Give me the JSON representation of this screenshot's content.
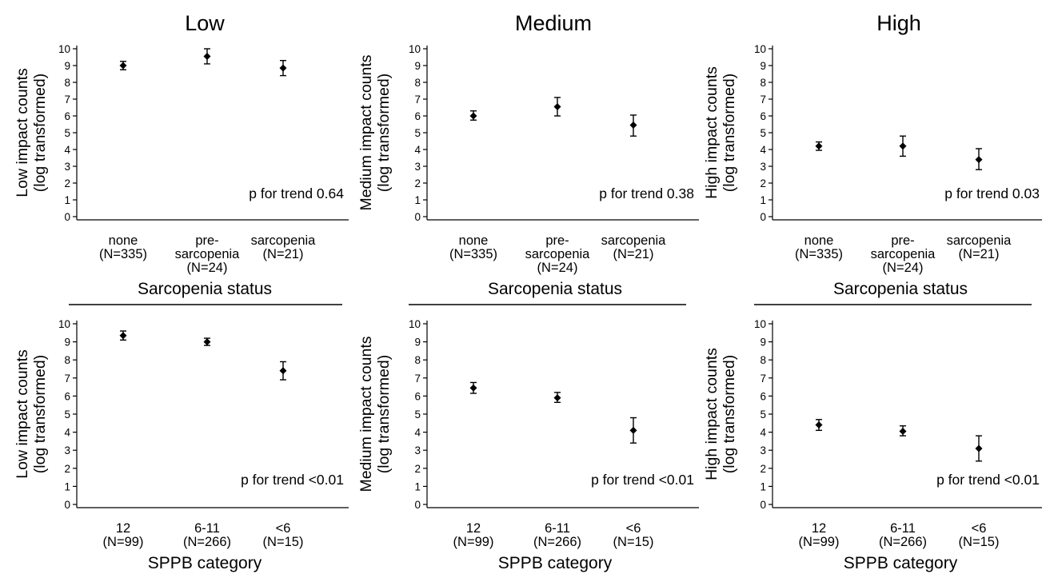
{
  "column_titles": [
    "Low",
    "Medium",
    "High"
  ],
  "chart_data": [
    {
      "type": "scatter",
      "errorbars": true,
      "ylabel": [
        "Low impact counts",
        "(log transformed)"
      ],
      "xlabel": "Sarcopenia status",
      "ylim": [
        0,
        10
      ],
      "yticks": [
        0,
        1,
        2,
        3,
        4,
        5,
        6,
        7,
        8,
        9,
        10
      ],
      "categories": [
        [
          "none",
          "(N=335)"
        ],
        [
          "pre-",
          "sarcopenia",
          "(N=24)"
        ],
        [
          "sarcopenia",
          "(N=21)"
        ]
      ],
      "values": [
        9.0,
        9.55,
        8.85
      ],
      "lower": [
        8.75,
        9.1,
        8.4
      ],
      "upper": [
        9.25,
        10.0,
        9.3
      ],
      "annotation": "p for trend 0.64",
      "grid": false
    },
    {
      "type": "scatter",
      "errorbars": true,
      "ylabel": [
        "Medium impact counts",
        "(log transformed)"
      ],
      "xlabel": "Sarcopenia status",
      "ylim": [
        0,
        10
      ],
      "yticks": [
        0,
        1,
        2,
        3,
        4,
        5,
        6,
        7,
        8,
        9,
        10
      ],
      "categories": [
        [
          "none",
          "(N=335)"
        ],
        [
          "pre-",
          "sarcopenia",
          "(N=24)"
        ],
        [
          "sarcopenia",
          "(N=21)"
        ]
      ],
      "values": [
        6.0,
        6.55,
        5.45
      ],
      "lower": [
        5.75,
        6.0,
        4.8
      ],
      "upper": [
        6.3,
        7.1,
        6.05
      ],
      "annotation": "p for trend 0.38",
      "grid": false
    },
    {
      "type": "scatter",
      "errorbars": true,
      "ylabel": [
        "High impact counts",
        "(log transformed)"
      ],
      "xlabel": "Sarcopenia status",
      "ylim": [
        0,
        10
      ],
      "yticks": [
        0,
        1,
        2,
        3,
        4,
        5,
        6,
        7,
        8,
        9,
        10
      ],
      "categories": [
        [
          "none",
          "(N=335)"
        ],
        [
          "pre-",
          "sarcopenia",
          "(N=24)"
        ],
        [
          "sarcopenia",
          "(N=21)"
        ]
      ],
      "values": [
        4.2,
        4.2,
        3.4
      ],
      "lower": [
        3.95,
        3.6,
        2.8
      ],
      "upper": [
        4.45,
        4.8,
        4.05
      ],
      "annotation": "p for trend 0.03",
      "grid": false
    },
    {
      "type": "scatter",
      "errorbars": true,
      "ylabel": [
        "Low impact counts",
        "(log transformed)"
      ],
      "xlabel": "SPPB category",
      "ylim": [
        0,
        10
      ],
      "yticks": [
        0,
        1,
        2,
        3,
        4,
        5,
        6,
        7,
        8,
        9,
        10
      ],
      "categories": [
        [
          "12",
          "(N=99)"
        ],
        [
          "6-11",
          "(N=266)"
        ],
        [
          "<6",
          "(N=15)"
        ]
      ],
      "values": [
        9.35,
        9.0,
        7.4
      ],
      "lower": [
        9.1,
        8.8,
        6.9
      ],
      "upper": [
        9.6,
        9.2,
        7.9
      ],
      "annotation": "p for trend <0.01",
      "grid": false
    },
    {
      "type": "scatter",
      "errorbars": true,
      "ylabel": [
        "Medium impact counts",
        "(log transformed)"
      ],
      "xlabel": "SPPB category",
      "ylim": [
        0,
        10
      ],
      "yticks": [
        0,
        1,
        2,
        3,
        4,
        5,
        6,
        7,
        8,
        9,
        10
      ],
      "categories": [
        [
          "12",
          "(N=99)"
        ],
        [
          "6-11",
          "(N=266)"
        ],
        [
          "<6",
          "(N=15)"
        ]
      ],
      "values": [
        6.45,
        5.9,
        4.1
      ],
      "lower": [
        6.15,
        5.65,
        3.4
      ],
      "upper": [
        6.75,
        6.2,
        4.8
      ],
      "annotation": "p for trend <0.01",
      "grid": false
    },
    {
      "type": "scatter",
      "errorbars": true,
      "ylabel": [
        "High impact counts",
        "(log transformed)"
      ],
      "xlabel": "SPPB category",
      "ylim": [
        0,
        10
      ],
      "yticks": [
        0,
        1,
        2,
        3,
        4,
        5,
        6,
        7,
        8,
        9,
        10
      ],
      "categories": [
        [
          "12",
          "(N=99)"
        ],
        [
          "6-11",
          "(N=266)"
        ],
        [
          "<6",
          "(N=15)"
        ]
      ],
      "values": [
        4.4,
        4.05,
        3.1
      ],
      "lower": [
        4.1,
        3.8,
        2.4
      ],
      "upper": [
        4.7,
        4.35,
        3.8
      ],
      "annotation": "p for trend <0.01",
      "grid": false
    }
  ]
}
